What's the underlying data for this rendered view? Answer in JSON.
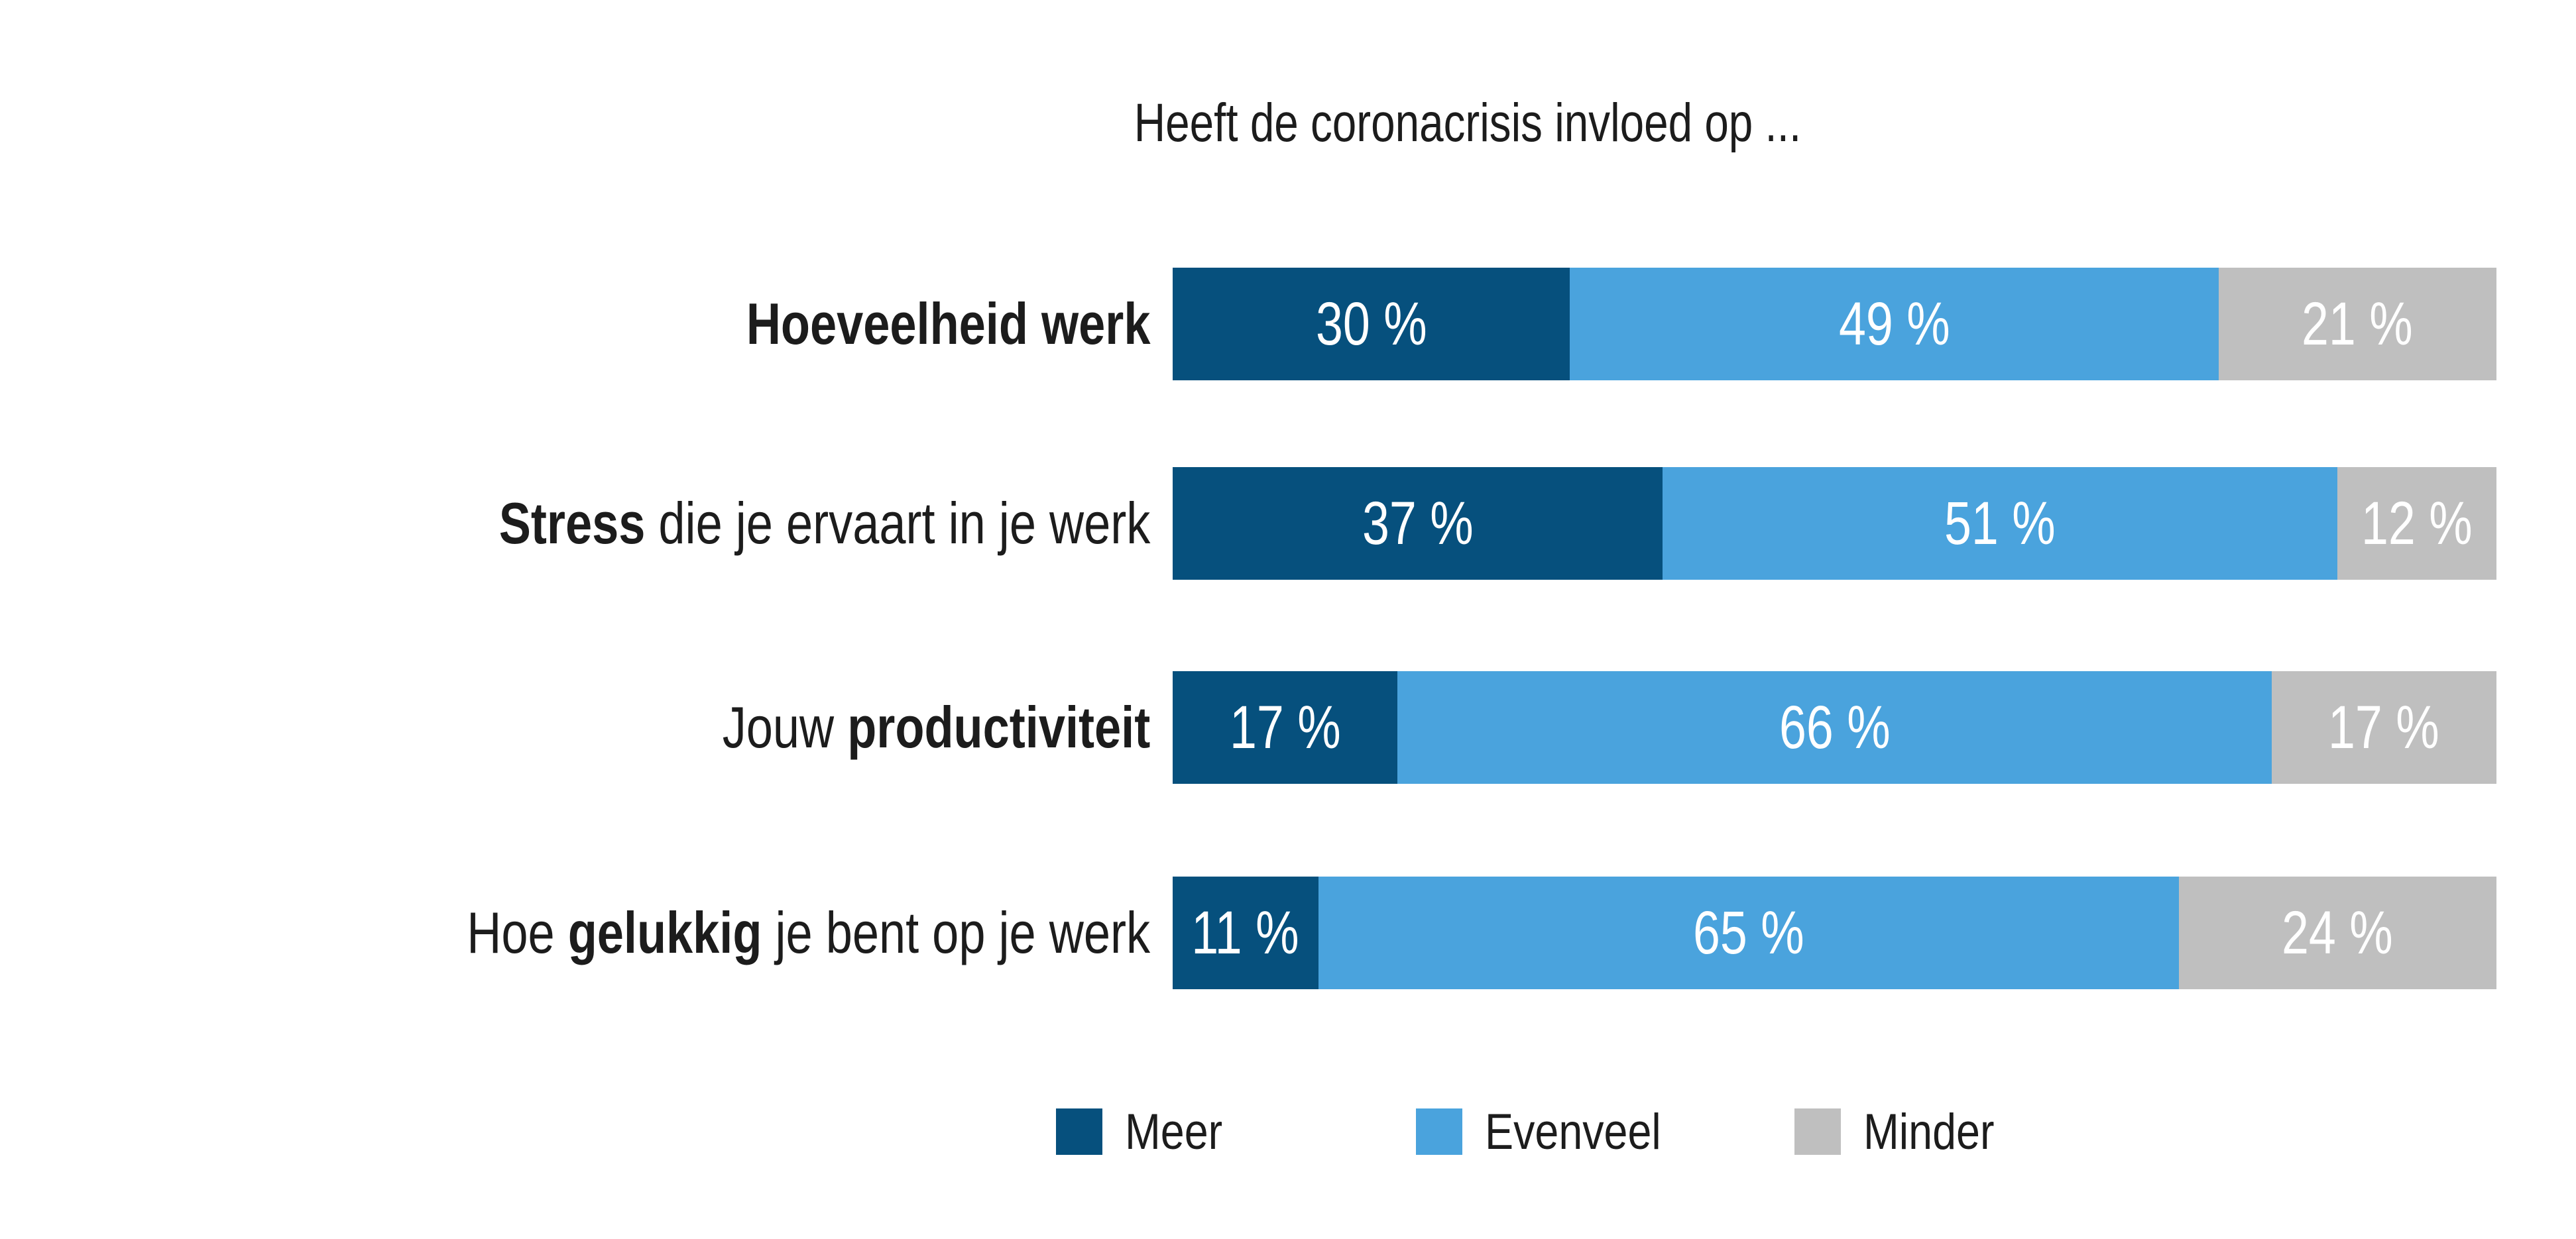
{
  "colors": {
    "background": "#ffffff",
    "text": "#1c1c1c",
    "value_label_text": "#ffffff",
    "meer": "#06507d",
    "evenveel": "#4aa3dd",
    "minder": "#bfbfbf"
  },
  "chart_data": {
    "type": "bar",
    "orientation": "horizontal",
    "stacked": true,
    "title": "Heeft de coronacrisis invloed op ...",
    "xlabel": "",
    "ylabel": "",
    "xlim": [
      0,
      100
    ],
    "grid": false,
    "axes_visible": false,
    "legend_position": "bottom",
    "unit": "%",
    "value_label_format": "{value} %",
    "categories": [
      "Hoeveelheid werk",
      "Stress die je ervaart in je werk",
      "Jouw productiviteit",
      "Hoe gelukkig je bent op je werk"
    ],
    "rows": [
      {
        "label_prefix": "",
        "label_bold": "Hoeveelheid werk",
        "label_suffix": ""
      },
      {
        "label_prefix": "",
        "label_bold": "Stress",
        "label_suffix": " die je ervaart in je werk"
      },
      {
        "label_prefix": "Jouw ",
        "label_bold": "productiviteit",
        "label_suffix": ""
      },
      {
        "label_prefix": "Hoe ",
        "label_bold": "gelukkig",
        "label_suffix": " je bent op je werk"
      }
    ],
    "series": [
      {
        "name": "Meer",
        "color": "#06507d",
        "values": [
          30,
          37,
          17,
          11
        ]
      },
      {
        "name": "Evenveel",
        "color": "#4aa3dd",
        "values": [
          49,
          51,
          66,
          65
        ]
      },
      {
        "name": "Minder",
        "color": "#bfbfbf",
        "values": [
          21,
          12,
          17,
          24
        ]
      }
    ],
    "value_labels": [
      [
        "30 %",
        "49 %",
        "21 %"
      ],
      [
        "37 %",
        "51 %",
        "12 %"
      ],
      [
        "17 %",
        "66 %",
        "17 %"
      ],
      [
        "11 %",
        "65 %",
        "24 %"
      ]
    ]
  }
}
